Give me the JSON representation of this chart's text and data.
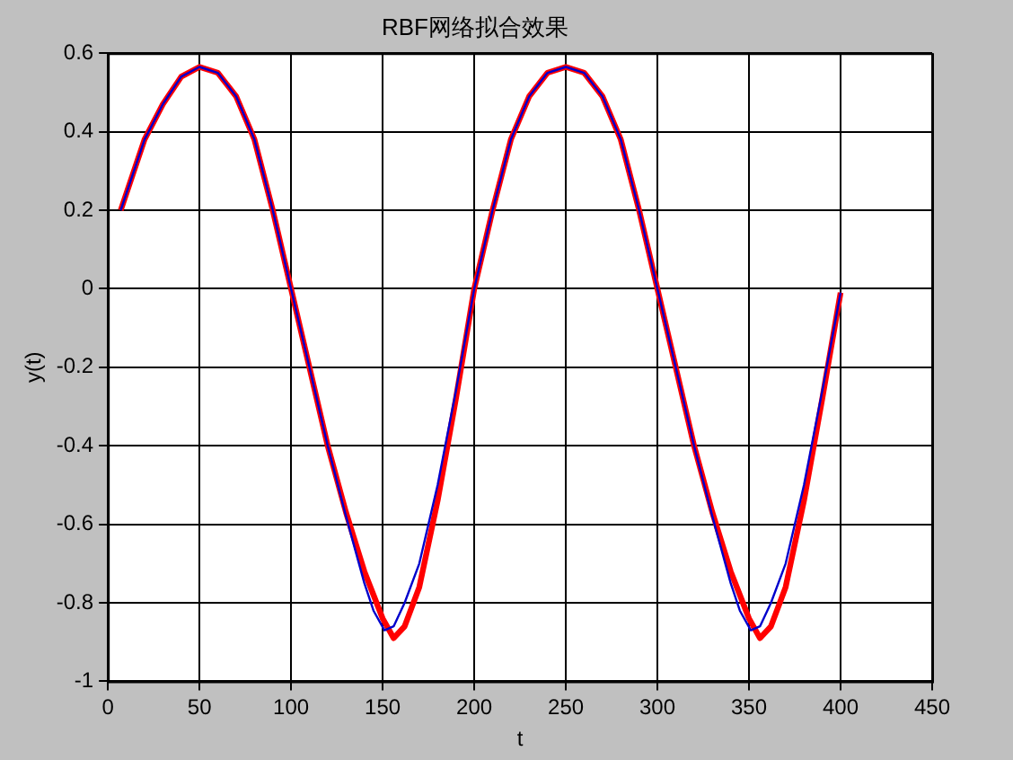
{
  "chart_data": {
    "type": "line",
    "title": "RBF网络拟合效果",
    "xlabel": "t",
    "ylabel": "y(t)",
    "xlim": [
      0,
      450
    ],
    "ylim": [
      -1,
      0.6
    ],
    "xticks": [
      0,
      50,
      100,
      150,
      200,
      250,
      300,
      350,
      400,
      450
    ],
    "yticks": [
      -1,
      -0.8,
      -0.6,
      -0.4,
      -0.2,
      0,
      0.2,
      0.4,
      0.6
    ],
    "grid": true,
    "legend": false,
    "marker": "none",
    "line_style": "solid",
    "series": [
      {
        "color": "#ff0000",
        "x": [
          7,
          20,
          30,
          40,
          50,
          60,
          70,
          80,
          90,
          100,
          110,
          120,
          130,
          140,
          145,
          150,
          156,
          162,
          170,
          180,
          190,
          200,
          210,
          220,
          230,
          240,
          250,
          260,
          270,
          280,
          290,
          300,
          310,
          320,
          330,
          340,
          345,
          350,
          356,
          362,
          370,
          380,
          390,
          400
        ],
        "values": [
          0.2,
          0.38,
          0.47,
          0.54,
          0.565,
          0.55,
          0.49,
          0.38,
          0.2,
          0.0,
          -0.2,
          -0.4,
          -0.57,
          -0.72,
          -0.78,
          -0.84,
          -0.89,
          -0.86,
          -0.76,
          -0.54,
          -0.28,
          0.0,
          0.2,
          0.38,
          0.49,
          0.55,
          0.565,
          0.55,
          0.49,
          0.38,
          0.2,
          0.0,
          -0.2,
          -0.4,
          -0.57,
          -0.72,
          -0.78,
          -0.84,
          -0.89,
          -0.86,
          -0.76,
          -0.54,
          -0.28,
          -0.01
        ]
      },
      {
        "color": "#0000cc",
        "x": [
          7,
          20,
          30,
          40,
          50,
          60,
          70,
          80,
          90,
          100,
          110,
          120,
          130,
          140,
          145,
          151,
          156,
          162,
          170,
          180,
          190,
          200,
          210,
          220,
          230,
          240,
          250,
          260,
          270,
          280,
          290,
          300,
          310,
          320,
          330,
          340,
          345,
          351,
          356,
          362,
          370,
          380,
          390,
          400
        ],
        "values": [
          0.2,
          0.38,
          0.47,
          0.54,
          0.565,
          0.55,
          0.49,
          0.38,
          0.2,
          0.0,
          -0.2,
          -0.4,
          -0.58,
          -0.75,
          -0.82,
          -0.87,
          -0.86,
          -0.8,
          -0.7,
          -0.5,
          -0.26,
          0.0,
          0.2,
          0.38,
          0.49,
          0.55,
          0.565,
          0.55,
          0.49,
          0.38,
          0.2,
          0.0,
          -0.2,
          -0.4,
          -0.58,
          -0.75,
          -0.82,
          -0.87,
          -0.86,
          -0.8,
          -0.7,
          -0.5,
          -0.26,
          -0.01
        ]
      }
    ]
  }
}
